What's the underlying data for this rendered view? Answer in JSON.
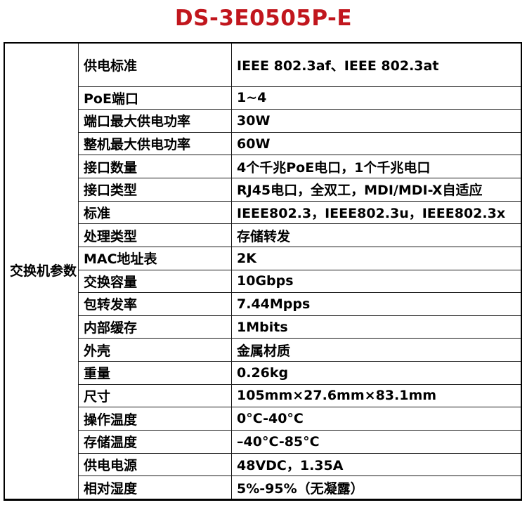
{
  "title": "DS-3E0505P-E",
  "colors": {
    "title_red": "#c1161d",
    "text": "#000000",
    "border": "#1a1a1a",
    "background": "#ffffff"
  },
  "table": {
    "group_label": "交换机参数",
    "rows": [
      {
        "label": "供电标准",
        "value": "IEEE 802.3af、IEEE 802.3at"
      },
      {
        "label": "PoE端口",
        "value": "1~4"
      },
      {
        "label": "端口最大供电功率",
        "value": "30W"
      },
      {
        "label": "整机最大供电功率",
        "value": "60W"
      },
      {
        "label": "接口数量",
        "value": "4个千兆PoE电口，1个千兆电口"
      },
      {
        "label": "接口类型",
        "value": "RJ45电口，全双工，MDI/MDI-X自适应"
      },
      {
        "label": "标准",
        "value": "IEEE802.3，IEEE802.3u，IEEE802.3x"
      },
      {
        "label": "处理类型",
        "value": "存储转发"
      },
      {
        "label": "MAC地址表",
        "value": "2K"
      },
      {
        "label": "交换容量",
        "value": "10Gbps"
      },
      {
        "label": "包转发率",
        "value": "7.44Mpps"
      },
      {
        "label": "内部缓存",
        "value": "1Mbits"
      },
      {
        "label": "外壳",
        "value": "金属材质"
      },
      {
        "label": "重量",
        "value": "0.26kg"
      },
      {
        "label": "尺寸",
        "value": "105mm×27.6mm×83.1mm"
      },
      {
        "label": "操作温度",
        "value": "0°C-40°C"
      },
      {
        "label": "存储温度",
        "value": "–40°C-85°C"
      },
      {
        "label": "供电电源",
        "value": "48VDC，1.35A"
      },
      {
        "label": "相对湿度",
        "value": "5%-95%（无凝露）"
      }
    ]
  }
}
